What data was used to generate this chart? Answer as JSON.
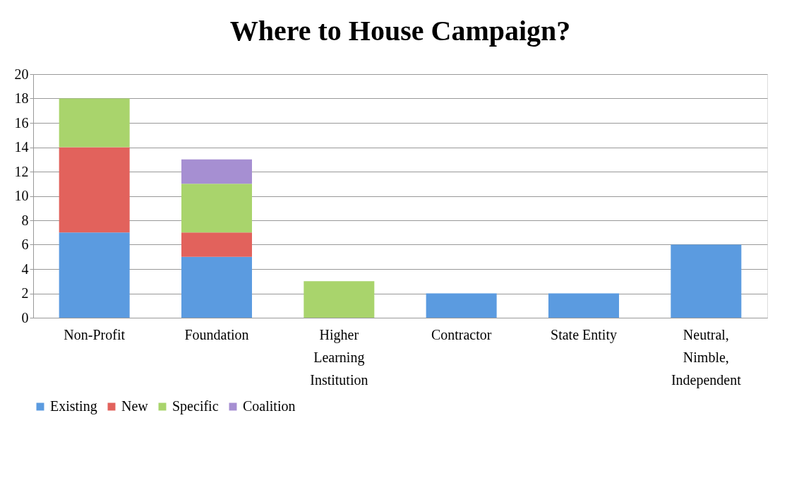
{
  "chart_data": {
    "type": "bar",
    "title": "Where to House Campaign?",
    "stacked": true,
    "categories": [
      "Non-Profit",
      "Foundation",
      "Higher Learning Institution",
      "Contractor",
      "State Entity",
      "Neutral, Nimble, Independent"
    ],
    "series": [
      {
        "name": "Existing",
        "color": "#5b9be0",
        "values": [
          7,
          5,
          0,
          2,
          2,
          6
        ]
      },
      {
        "name": "New",
        "color": "#e2625c",
        "values": [
          7,
          2,
          0,
          0,
          0,
          0
        ]
      },
      {
        "name": "Specific",
        "color": "#a9d46c",
        "values": [
          4,
          4,
          3,
          0,
          0,
          0
        ]
      },
      {
        "name": "Coalition",
        "color": "#a68fd2",
        "values": [
          0,
          2,
          0,
          0,
          0,
          0
        ]
      }
    ],
    "ylim": [
      0,
      20
    ],
    "yticks": [
      0,
      2,
      4,
      6,
      8,
      10,
      12,
      14,
      16,
      18,
      20
    ],
    "grid": "y",
    "legend": "bottom"
  }
}
